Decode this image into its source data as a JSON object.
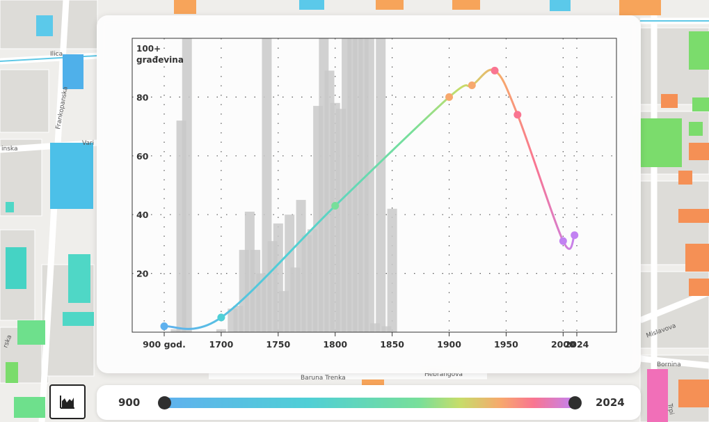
{
  "map": {
    "streets": [
      "Ilica",
      "Frankopanska",
      "Vari",
      "inska",
      "rska",
      "Baruna Trenka",
      "Hebrangova",
      "Mislavova",
      "Bornina",
      "Trpi"
    ]
  },
  "chart_data": {
    "type": "bar",
    "title": "",
    "ylabel": [
      "100+",
      "građevina"
    ],
    "ylim": [
      0,
      100
    ],
    "y_ticks": [
      20,
      40,
      60,
      80
    ],
    "x_tick_labels": [
      {
        "label": "900 god.",
        "x": 1650
      },
      {
        "label": "1700",
        "x": 1700
      },
      {
        "label": "1750",
        "x": 1750
      },
      {
        "label": "1800",
        "x": 1800
      },
      {
        "label": "1850",
        "x": 1850
      },
      {
        "label": "1900",
        "x": 1900
      },
      {
        "label": "1950",
        "x": 1950
      },
      {
        "label": "2000",
        "x": 2000
      },
      {
        "label": "2024",
        "x": 2012
      }
    ],
    "bars": [
      {
        "x": 1660,
        "value": 1
      },
      {
        "x": 1665,
        "value": 72
      },
      {
        "x": 1670,
        "value": 100
      },
      {
        "x": 1700,
        "value": 1
      },
      {
        "x": 1710,
        "value": 8
      },
      {
        "x": 1715,
        "value": 9
      },
      {
        "x": 1720,
        "value": 28
      },
      {
        "x": 1725,
        "value": 41
      },
      {
        "x": 1730,
        "value": 28
      },
      {
        "x": 1735,
        "value": 20
      },
      {
        "x": 1740,
        "value": 100
      },
      {
        "x": 1745,
        "value": 31
      },
      {
        "x": 1750,
        "value": 37
      },
      {
        "x": 1755,
        "value": 14
      },
      {
        "x": 1760,
        "value": 40
      },
      {
        "x": 1765,
        "value": 22
      },
      {
        "x": 1770,
        "value": 45
      },
      {
        "x": 1775,
        "value": 33
      },
      {
        "x": 1780,
        "value": 35
      },
      {
        "x": 1785,
        "value": 77
      },
      {
        "x": 1790,
        "value": 100
      },
      {
        "x": 1795,
        "value": 89
      },
      {
        "x": 1800,
        "value": 78
      },
      {
        "x": 1805,
        "value": 76
      },
      {
        "x": 1810,
        "value": 100
      },
      {
        "x": 1815,
        "value": 100
      },
      {
        "x": 1820,
        "value": 100
      },
      {
        "x": 1825,
        "value": 100
      },
      {
        "x": 1830,
        "value": 100
      },
      {
        "x": 1835,
        "value": 3
      },
      {
        "x": 1840,
        "value": 100
      },
      {
        "x": 1845,
        "value": 2
      },
      {
        "x": 1850,
        "value": 42
      }
    ],
    "series": [
      {
        "name": "",
        "points": [
          {
            "x": 1650,
            "y": 2
          },
          {
            "x": 1700,
            "y": 5
          },
          {
            "x": 1800,
            "y": 43
          },
          {
            "x": 1900,
            "y": 80
          },
          {
            "x": 1920,
            "y": 84
          },
          {
            "x": 1940,
            "y": 89
          },
          {
            "x": 1960,
            "y": 74
          },
          {
            "x": 2000,
            "y": 31
          },
          {
            "x": 2010,
            "y": 33
          }
        ]
      }
    ],
    "gradient_colors": [
      "#5fb1ee",
      "#4fcfd6",
      "#77df9a",
      "#c6dd6a",
      "#f7a86d",
      "#f97591",
      "#c282f2"
    ],
    "grid": true
  },
  "range_slider": {
    "min_label": "900",
    "max_label": "2024"
  },
  "chart_toggle": {
    "icon": "area-chart-icon"
  }
}
